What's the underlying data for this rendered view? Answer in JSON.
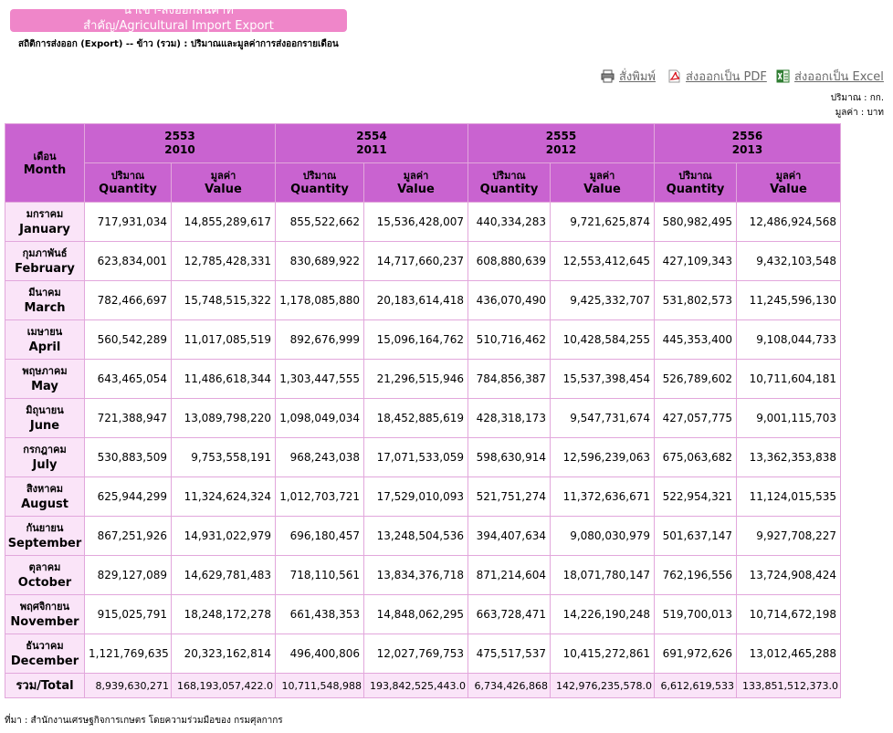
{
  "banner": {
    "line1": "นำเข้า-ส่งออกสินค้าที่",
    "line2": "สำคัญ/Agricultural Import Export"
  },
  "subtitle": "สถิติการส่งออก (Export) -- ข้าว (รวม) : ปริมาณและมูลค่าการส่งออกรายเดือน",
  "actions": {
    "print": "สั่งพิมพ์",
    "pdf": "ส่งออกเป็น PDF",
    "excel": "ส่งออกเป็น Excel"
  },
  "units": {
    "quantity": "ปริมาณ : กก.",
    "value": "มูลค่า : บาท"
  },
  "colors": {
    "header": "#c963d0",
    "month_cell": "#fae4f8",
    "banner": "#ef86c9",
    "border": "#e2a7dc"
  },
  "table": {
    "month_header": {
      "th": "เดือน",
      "en": "Month"
    },
    "years": [
      {
        "th": "2553",
        "en": "2010"
      },
      {
        "th": "2554",
        "en": "2011"
      },
      {
        "th": "2555",
        "en": "2012"
      },
      {
        "th": "2556",
        "en": "2013"
      }
    ],
    "sub_headers": {
      "qty_th": "ปริมาณ",
      "qty_en": "Quantity",
      "val_th": "มูลค่า",
      "val_en": "Value"
    },
    "rows": [
      {
        "th": "มกราคม",
        "en": "January",
        "cells": [
          "717,931,034",
          "14,855,289,617",
          "855,522,662",
          "15,536,428,007",
          "440,334,283",
          "9,721,625,874",
          "580,982,495",
          "12,486,924,568"
        ]
      },
      {
        "th": "กุมภาพันธ์",
        "en": "February",
        "cells": [
          "623,834,001",
          "12,785,428,331",
          "830,689,922",
          "14,717,660,237",
          "608,880,639",
          "12,553,412,645",
          "427,109,343",
          "9,432,103,548"
        ]
      },
      {
        "th": "มีนาคม",
        "en": "March",
        "cells": [
          "782,466,697",
          "15,748,515,322",
          "1,178,085,880",
          "20,183,614,418",
          "436,070,490",
          "9,425,332,707",
          "531,802,573",
          "11,245,596,130"
        ]
      },
      {
        "th": "เมษายน",
        "en": "April",
        "cells": [
          "560,542,289",
          "11,017,085,519",
          "892,676,999",
          "15,096,164,762",
          "510,716,462",
          "10,428,584,255",
          "445,353,400",
          "9,108,044,733"
        ]
      },
      {
        "th": "พฤษภาคม",
        "en": "May",
        "cells": [
          "643,465,054",
          "11,486,618,344",
          "1,303,447,555",
          "21,296,515,946",
          "784,856,387",
          "15,537,398,454",
          "526,789,602",
          "10,711,604,181"
        ]
      },
      {
        "th": "มิถุนายน",
        "en": "June",
        "cells": [
          "721,388,947",
          "13,089,798,220",
          "1,098,049,034",
          "18,452,885,619",
          "428,318,173",
          "9,547,731,674",
          "427,057,775",
          "9,001,115,703"
        ]
      },
      {
        "th": "กรกฎาคม",
        "en": "July",
        "cells": [
          "530,883,509",
          "9,753,558,191",
          "968,243,038",
          "17,071,533,059",
          "598,630,914",
          "12,596,239,063",
          "675,063,682",
          "13,362,353,838"
        ]
      },
      {
        "th": "สิงหาคม",
        "en": "August",
        "cells": [
          "625,944,299",
          "11,324,624,324",
          "1,012,703,721",
          "17,529,010,093",
          "521,751,274",
          "11,372,636,671",
          "522,954,321",
          "11,124,015,535"
        ]
      },
      {
        "th": "กันยายน",
        "en": "September",
        "cells": [
          "867,251,926",
          "14,931,022,979",
          "696,180,457",
          "13,248,504,536",
          "394,407,634",
          "9,080,030,979",
          "501,637,147",
          "9,927,708,227"
        ]
      },
      {
        "th": "ตุลาคม",
        "en": "October",
        "cells": [
          "829,127,089",
          "14,629,781,483",
          "718,110,561",
          "13,834,376,718",
          "871,214,604",
          "18,071,780,147",
          "762,196,556",
          "13,724,908,424"
        ]
      },
      {
        "th": "พฤศจิกายน",
        "en": "November",
        "cells": [
          "915,025,791",
          "18,248,172,278",
          "661,438,353",
          "14,848,062,295",
          "663,728,471",
          "14,226,190,248",
          "519,700,013",
          "10,714,672,198"
        ]
      },
      {
        "th": "ธันวาคม",
        "en": "December",
        "cells": [
          "1,121,769,635",
          "20,323,162,814",
          "496,400,806",
          "12,027,769,753",
          "475,517,537",
          "10,415,272,861",
          "691,972,626",
          "13,012,465,288"
        ]
      }
    ],
    "total": {
      "label": "รวม/Total",
      "cells": [
        "8,939,630,271",
        "168,193,057,422.0",
        "10,711,548,988",
        "193,842,525,443.0",
        "6,734,426,868",
        "142,976,235,578.0",
        "6,612,619,533",
        "133,851,512,373.0"
      ]
    }
  },
  "footer": "ที่มา : สำนักงานเศรษฐกิจการเกษตร โดยความร่วมมือของ กรมศุลกากร"
}
